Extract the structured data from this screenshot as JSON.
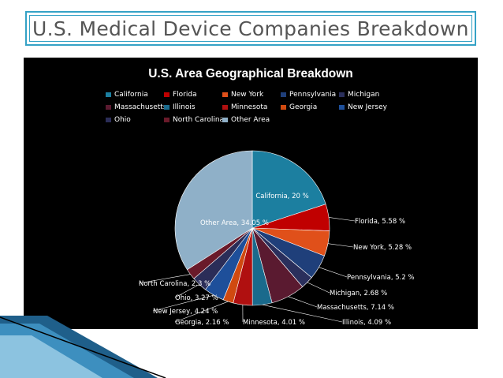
{
  "slide": {
    "title": "U.S. Medical Device Companies Breakdown"
  },
  "chart_data": {
    "type": "pie",
    "title": "U.S. Area Geographical Breakdown",
    "legend_position": "top",
    "slices": [
      {
        "label": "California",
        "value": 20,
        "text": "California, 20 %",
        "color": "#1c7fa0"
      },
      {
        "label": "Florida",
        "value": 5.58,
        "text": "Florida, 5.58 %",
        "color": "#c00000"
      },
      {
        "label": "New York",
        "value": 5.28,
        "text": "New York, 5.28 %",
        "color": "#e0501a"
      },
      {
        "label": "Pennsylvania",
        "value": 5.2,
        "text": "Pennsylvania, 5.2 %",
        "color": "#1f3f7a"
      },
      {
        "label": "Michigan",
        "value": 2.68,
        "text": "Michigan, 2.68 %",
        "color": "#2a2f5c"
      },
      {
        "label": "Massachusetts",
        "value": 7.14,
        "text": "Massachusetts, 7.14 %",
        "color": "#5a1a30"
      },
      {
        "label": "Illinois",
        "value": 4.09,
        "text": "Illinois, 4.09 %",
        "color": "#1a6a8c"
      },
      {
        "label": "Minnesota",
        "value": 4.01,
        "text": "Minnesota, 4.01 %",
        "color": "#b01010"
      },
      {
        "label": "Georgia",
        "value": 2.16,
        "text": "Georgia, 2.16 %",
        "color": "#d04a10"
      },
      {
        "label": "New Jersey",
        "value": 4.24,
        "text": "New Jersey, 4.24 %",
        "color": "#1e4f9a"
      },
      {
        "label": "Ohio",
        "value": 3.27,
        "text": "Ohio, 3.27 %",
        "color": "#2b2d58"
      },
      {
        "label": "North Carolina",
        "value": 2.3,
        "text": "North Carolina, 2.3 %",
        "color": "#6a1a2a"
      },
      {
        "label": "Other Area",
        "value": 34.05,
        "text": "Other Area, 34.05 %",
        "color": "#8fb0c8"
      }
    ]
  }
}
